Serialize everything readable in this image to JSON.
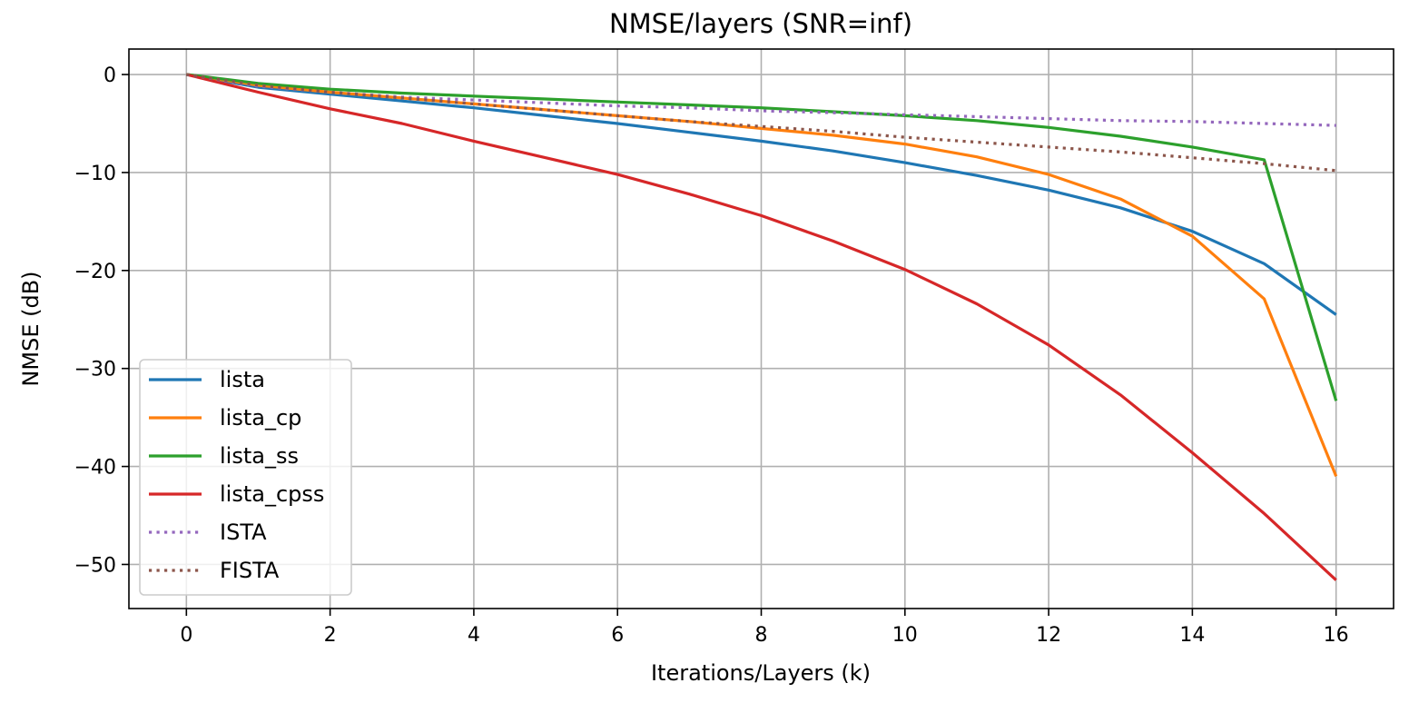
{
  "chart_data": {
    "type": "line",
    "title": "NMSE/layers (SNR=inf)",
    "xlabel": "Iterations/Layers (k)",
    "ylabel": "NMSE (dB)",
    "xlim": [
      -0.8,
      16.8
    ],
    "ylim": [
      -54.5,
      2.6
    ],
    "xticks": [
      0,
      2,
      4,
      6,
      8,
      10,
      12,
      14,
      16
    ],
    "yticks": [
      0,
      -10,
      -20,
      -30,
      -40,
      -50
    ],
    "grid": true,
    "legend_position": "lower-left",
    "x": [
      0,
      1,
      2,
      3,
      4,
      5,
      6,
      7,
      8,
      9,
      10,
      11,
      12,
      13,
      14,
      15,
      16
    ],
    "series": [
      {
        "name": "lista",
        "color": "#1f77b4",
        "style": "solid",
        "values": [
          0,
          -1.3,
          -2.0,
          -2.7,
          -3.4,
          -4.2,
          -5.0,
          -5.9,
          -6.8,
          -7.8,
          -9.0,
          -10.3,
          -11.8,
          -13.6,
          -16.0,
          -19.3,
          -24.5
        ]
      },
      {
        "name": "lista_cp",
        "color": "#ff7f0e",
        "style": "solid",
        "values": [
          0,
          -1.1,
          -1.8,
          -2.4,
          -3.0,
          -3.6,
          -4.2,
          -4.8,
          -5.5,
          -6.2,
          -7.1,
          -8.4,
          -10.2,
          -12.7,
          -16.5,
          -22.9,
          -41.0
        ]
      },
      {
        "name": "lista_ss",
        "color": "#2ca02c",
        "style": "solid",
        "values": [
          0,
          -0.9,
          -1.5,
          -1.9,
          -2.2,
          -2.5,
          -2.8,
          -3.1,
          -3.4,
          -3.8,
          -4.2,
          -4.7,
          -5.4,
          -6.3,
          -7.4,
          -8.7,
          -33.3
        ]
      },
      {
        "name": "lista_cpss",
        "color": "#d62728",
        "style": "solid",
        "values": [
          0,
          -1.8,
          -3.5,
          -5.0,
          -6.8,
          -8.5,
          -10.2,
          -12.2,
          -14.4,
          -17.0,
          -19.9,
          -23.4,
          -27.6,
          -32.7,
          -38.6,
          -44.8,
          -51.6
        ]
      },
      {
        "name": "ISTA",
        "color": "#9467bd",
        "style": "dotted",
        "values": [
          0,
          -1.2,
          -1.8,
          -2.3,
          -2.6,
          -2.9,
          -3.2,
          -3.4,
          -3.7,
          -3.9,
          -4.1,
          -4.3,
          -4.5,
          -4.7,
          -4.8,
          -5.0,
          -5.2
        ]
      },
      {
        "name": "FISTA",
        "color": "#8c564b",
        "style": "dotted",
        "values": [
          0,
          -1.1,
          -1.8,
          -2.4,
          -3.0,
          -3.6,
          -4.2,
          -4.8,
          -5.3,
          -5.8,
          -6.4,
          -6.9,
          -7.4,
          -7.9,
          -8.5,
          -9.1,
          -9.8
        ]
      }
    ]
  }
}
